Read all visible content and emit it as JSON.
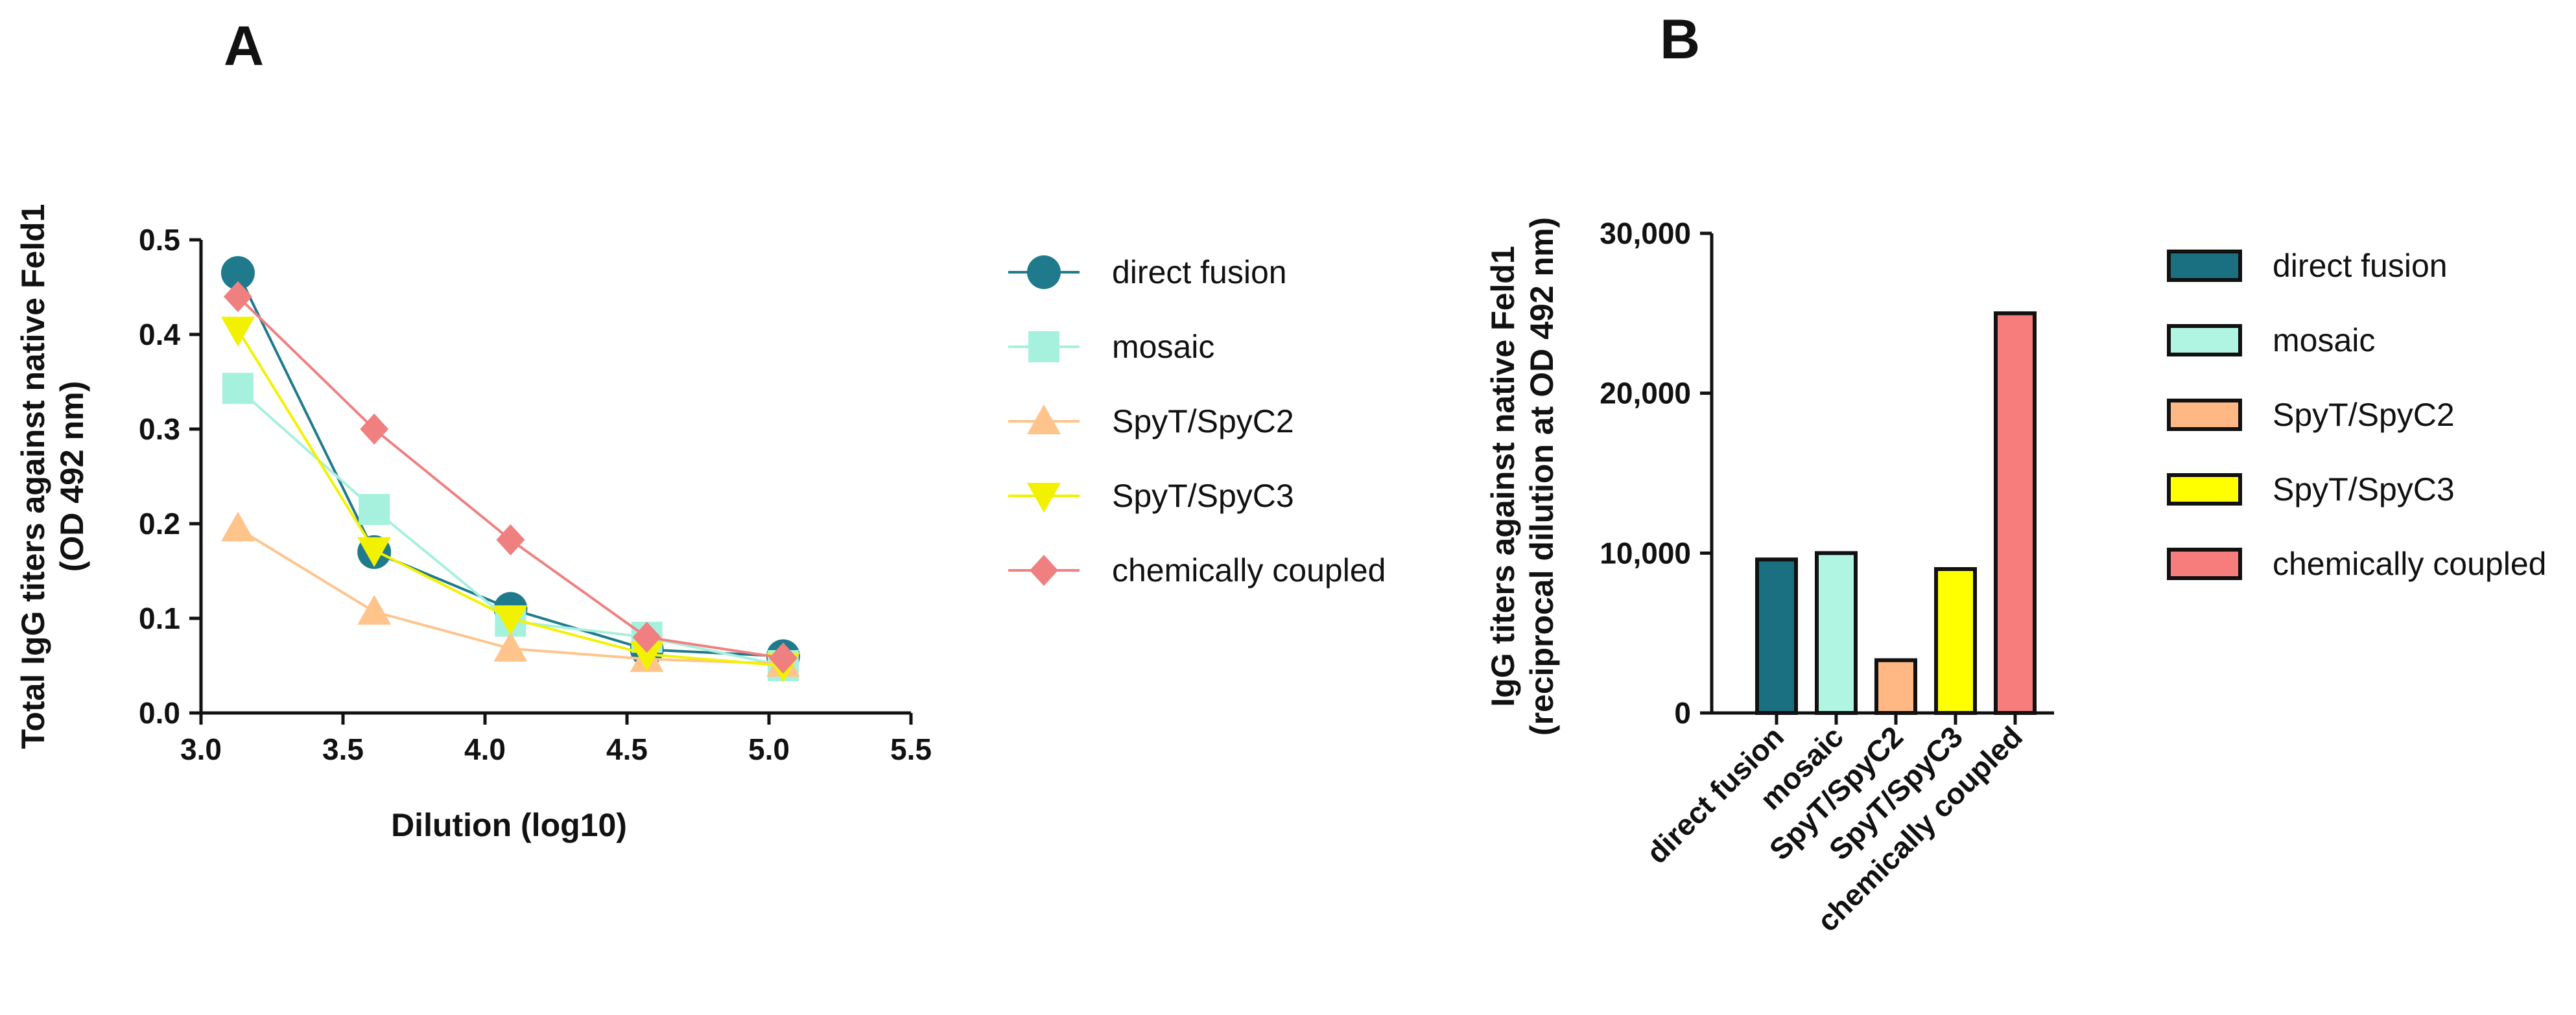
{
  "chart_data": [
    {
      "panel": "A",
      "type": "line",
      "xlabel": "Dilution (log10)",
      "ylabel_lines": [
        "Total IgG titers against native Feld1",
        "(OD 492 nm)"
      ],
      "xlim": [
        3.0,
        5.5
      ],
      "ylim": [
        0.0,
        0.5
      ],
      "xticks": [
        3.0,
        3.5,
        4.0,
        4.5,
        5.0,
        5.5
      ],
      "yticks": [
        0.0,
        0.1,
        0.2,
        0.3,
        0.4,
        0.5
      ],
      "grid": false,
      "legend_position": "right",
      "x": [
        3.13,
        3.61,
        4.09,
        4.57,
        5.05
      ],
      "series": [
        {
          "name": "direct fusion",
          "color": "#1f7a8c",
          "marker": "circle",
          "values": [
            0.465,
            0.17,
            0.11,
            0.067,
            0.06
          ]
        },
        {
          "name": "mosaic",
          "color": "#a6f0de",
          "marker": "square",
          "values": [
            0.343,
            0.215,
            0.097,
            0.08,
            0.05
          ]
        },
        {
          "name": "SpyT/SpyC2",
          "color": "#ffc48c",
          "marker": "triangle-up",
          "values": [
            0.195,
            0.107,
            0.068,
            0.057,
            0.052
          ]
        },
        {
          "name": "SpyT/SpyC3",
          "color": "#f2f200",
          "marker": "triangle-down",
          "values": [
            0.405,
            0.172,
            0.1,
            0.062,
            0.05
          ]
        },
        {
          "name": "chemically coupled",
          "color": "#f08080",
          "marker": "diamond",
          "values": [
            0.44,
            0.3,
            0.183,
            0.08,
            0.058
          ]
        }
      ]
    },
    {
      "panel": "B",
      "type": "bar",
      "ylabel_lines": [
        "IgG titers against native Feld1",
        "(reciprocal dilution at OD 492 nm)"
      ],
      "ylim": [
        0,
        30000
      ],
      "yticks": [
        0,
        10000,
        20000,
        30000
      ],
      "ytick_labels": [
        "0",
        "10,000",
        "20,000",
        "30,000"
      ],
      "grid": false,
      "legend_position": "right",
      "categories": [
        "direct fusion",
        "mosaic",
        "SpyT/SpyC2",
        "SpyT/SpyC3",
        "chemically coupled"
      ],
      "values": [
        9600,
        10000,
        3300,
        9000,
        25000
      ],
      "colors": [
        "#1a6f80",
        "#b0f5e2",
        "#ffb884",
        "#ffff00",
        "#f77c7c"
      ]
    }
  ]
}
